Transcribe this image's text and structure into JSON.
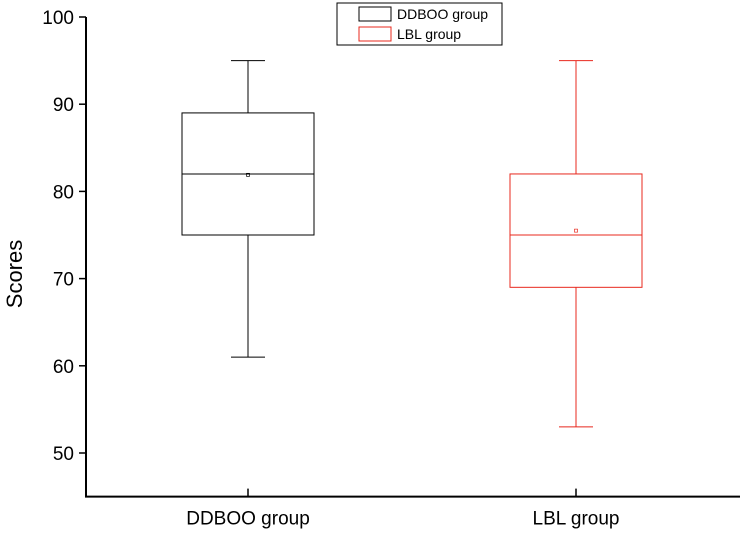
{
  "chart_data": {
    "type": "box",
    "title": "",
    "xlabel": "",
    "ylabel": "Scores",
    "ylim": [
      45,
      100
    ],
    "yticks": [
      50,
      60,
      70,
      80,
      90,
      100
    ],
    "categories": [
      "DDBOO group",
      "LBL group"
    ],
    "series": [
      {
        "name": "DDBOO group",
        "color": "#000000",
        "min": 61,
        "q1": 75,
        "median": 82,
        "q3": 89,
        "max": 95,
        "mean": 81.9
      },
      {
        "name": "LBL group",
        "color": "#e8281e",
        "min": 53,
        "q1": 69,
        "median": 75,
        "q3": 82,
        "max": 95,
        "mean": 75.5
      }
    ],
    "legend": {
      "placement": "top-center",
      "entries": [
        "DDBOO group",
        "LBL group"
      ]
    },
    "grid": false
  }
}
